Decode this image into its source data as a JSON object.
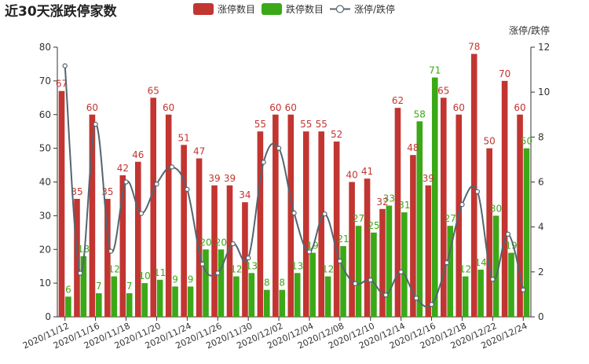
{
  "chart_data": {
    "type": "bar",
    "title": "近30天涨跌停家数",
    "legend_position": "top",
    "colors": {
      "up": "#c23531",
      "down": "#3ba818",
      "ratio": "#546570"
    },
    "categories": [
      "2020/11/12",
      "2020/11/13",
      "2020/11/16",
      "2020/11/17",
      "2020/11/18",
      "2020/11/19",
      "2020/11/20",
      "2020/11/23",
      "2020/11/24",
      "2020/11/25",
      "2020/11/26",
      "2020/11/27",
      "2020/11/30",
      "2020/12/01",
      "2020/12/02",
      "2020/12/03",
      "2020/12/04",
      "2020/12/07",
      "2020/12/08",
      "2020/12/09",
      "2020/12/10",
      "2020/12/11",
      "2020/12/14",
      "2020/12/15",
      "2020/12/16",
      "2020/12/17",
      "2020/12/18",
      "2020/12/21",
      "2020/12/22",
      "2020/12/23",
      "2020/12/24"
    ],
    "shown_x_ticks": [
      "2020/11/12",
      "2020/11/16",
      "2020/11/18",
      "2020/11/20",
      "2020/11/24",
      "2020/11/26",
      "2020/11/30",
      "2020/12/02",
      "2020/12/04",
      "2020/12/08",
      "2020/12/10",
      "2020/12/14",
      "2020/12/16",
      "2020/12/18",
      "2020/12/22",
      "2020/12/24"
    ],
    "series": [
      {
        "name": "涨停数目",
        "values": [
          67,
          35,
          60,
          35,
          42,
          46,
          65,
          60,
          51,
          47,
          39,
          39,
          34,
          55,
          60,
          60,
          55,
          55,
          52,
          40,
          41,
          32,
          62,
          48,
          39,
          65,
          60,
          78,
          50,
          70,
          60
        ]
      },
      {
        "name": "跌停数目",
        "values": [
          6,
          18,
          7,
          12,
          7,
          10,
          11,
          9,
          9,
          20,
          20,
          12,
          13,
          8,
          8,
          13,
          19,
          12,
          21,
          27,
          25,
          33,
          31,
          58,
          71,
          27,
          12,
          14,
          30,
          19,
          50
        ]
      },
      {
        "name": "涨停/跌停",
        "axis": "right",
        "values": [
          11.17,
          1.94,
          8.57,
          2.92,
          6.0,
          4.6,
          5.91,
          6.67,
          5.67,
          2.35,
          1.95,
          3.25,
          2.62,
          6.88,
          7.5,
          4.62,
          2.89,
          4.58,
          2.48,
          1.48,
          1.64,
          0.97,
          2.0,
          0.83,
          0.55,
          2.41,
          5.0,
          5.57,
          1.67,
          3.68,
          1.2
        ]
      }
    ],
    "y_left": {
      "min": 0,
      "max": 80,
      "ticks": [
        "0",
        "10",
        "20",
        "30",
        "40",
        "50",
        "60",
        "70",
        "80"
      ]
    },
    "y_right": {
      "min": 0,
      "max": 12,
      "label": "涨停/跌停",
      "ticks": [
        "0",
        "2",
        "4",
        "6",
        "8",
        "10",
        "12"
      ]
    },
    "xlabel": "",
    "ylabel": ""
  }
}
